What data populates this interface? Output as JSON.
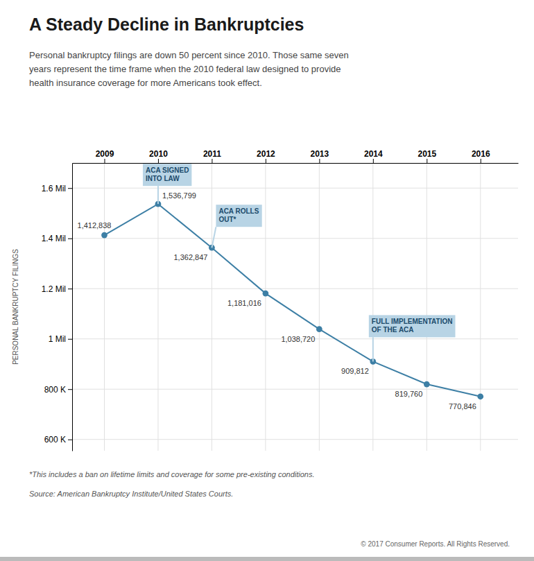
{
  "chart_data": {
    "type": "line",
    "title": "A Steady Decline in Bankruptcies",
    "subtitle": "Personal bankruptcy filings are down 50 percent since 2010. Those same seven\nyears represent the time frame when the 2010 federal law designed to provide\nhealth insurance coverage for more Americans took effect.",
    "x": [
      2009,
      2010,
      2011,
      2012,
      2013,
      2014,
      2015,
      2016
    ],
    "values": [
      1412838,
      1536799,
      1362847,
      1181016,
      1038720,
      909812,
      819760,
      770846
    ],
    "value_labels": [
      "1,412,838",
      "1,536,799",
      "1,362,847",
      "1,181,016",
      "1,038,720",
      "909,812",
      "819,760",
      "770,846"
    ],
    "data_labels": true,
    "xlim": [
      2008.4,
      2016.7
    ],
    "xticks": [
      2009,
      2010,
      2011,
      2012,
      2013,
      2014,
      2015,
      2016
    ],
    "ylim": [
      555000,
      1700000
    ],
    "yticks": [
      {
        "value": 600000,
        "label": "600 K"
      },
      {
        "value": 800000,
        "label": "800 K"
      },
      {
        "value": 1000000,
        "label": "1 Mil"
      },
      {
        "value": 1200000,
        "label": "1.2 Mil"
      },
      {
        "value": 1400000,
        "label": "1.4 Mil"
      },
      {
        "value": 1600000,
        "label": "1.6 Mil"
      }
    ],
    "ylabel": "PERSONAL BANKRUPTCY FILINGS",
    "color": "#3d7fa5",
    "marker": "circle",
    "grid": true,
    "annotations": [
      {
        "text": "ACA SIGNED\nINTO LAW",
        "x": 2010
      },
      {
        "text": "ACA ROLLS\nOUT*",
        "x": 2011
      },
      {
        "text": "FULL IMPLEMENTATION\nOF THE ACA",
        "x": 2014
      }
    ],
    "footnote": "*This includes a ban on lifetime limits and coverage for some pre-existing conditions.",
    "source": "Source: American Bankruptcy Institute/United States Courts.",
    "copyright": "© 2017 Consumer Reports. All Rights Reserved."
  }
}
